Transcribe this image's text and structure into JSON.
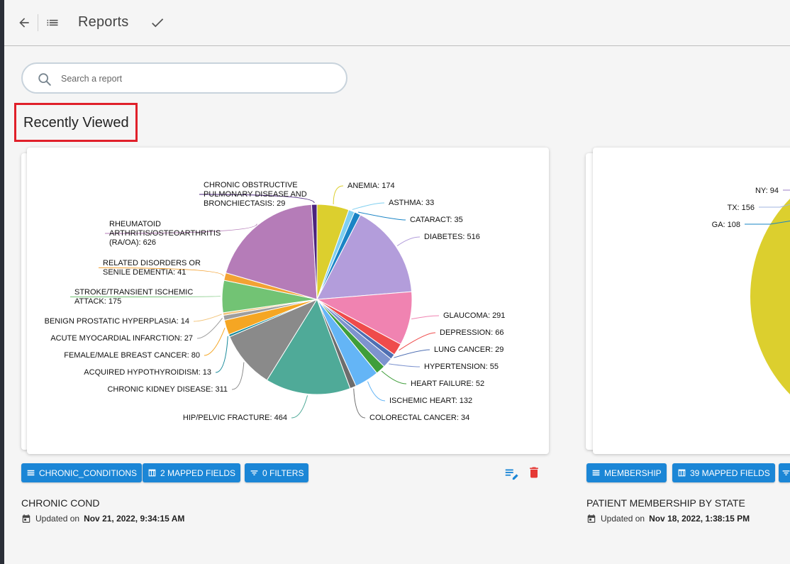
{
  "topbar": {
    "title": "Reports"
  },
  "search": {
    "placeholder": "Search a report"
  },
  "section": {
    "title": "Recently Viewed"
  },
  "reports": [
    {
      "name": "CHRONIC COND",
      "updated_prefix": "Updated on",
      "updated_at": "Nov 21, 2022, 9:34:15 AM",
      "chips": {
        "dataset": "CHRONIC_CONDITIONS",
        "mapped": "2 MAPPED FIELDS",
        "filters": "0 FILTERS"
      }
    },
    {
      "name": "PATIENT MEMBERSHIP BY STATE",
      "updated_prefix": "Updated on",
      "updated_at": "Nov 18, 2022, 1:38:15 PM",
      "chips": {
        "dataset": "MEMBERSHIP",
        "mapped": "39 MAPPED FIELDS"
      }
    }
  ],
  "chart_data": [
    {
      "type": "pie",
      "slices": [
        {
          "label": "ANEMIA",
          "value": 174,
          "color": "#dccf2e"
        },
        {
          "label": "ASTHMA",
          "value": 33,
          "color": "#7fcff0"
        },
        {
          "label": "CATARACT",
          "value": 35,
          "color": "#1a84c5"
        },
        {
          "label": "DIABETES",
          "value": 516,
          "color": "#b39ddb"
        },
        {
          "label": "GLAUCOMA",
          "value": 291,
          "color": "#f083b1"
        },
        {
          "label": "DEPRESSION",
          "value": 66,
          "color": "#ef4b4b"
        },
        {
          "label": "LUNG CANCER",
          "value": 29,
          "color": "#4f6fb3"
        },
        {
          "label": "HYPERTENSION",
          "value": 55,
          "color": "#7d93cf"
        },
        {
          "label": "HEART FAILURE",
          "value": 52,
          "color": "#3f9e3a"
        },
        {
          "label": "ISCHEMIC HEART",
          "value": 132,
          "color": "#64b5f6"
        },
        {
          "label": "COLORECTAL CANCER",
          "value": 34,
          "color": "#6d6d6d"
        },
        {
          "label": "HIP/PELVIC FRACTURE",
          "value": 464,
          "color": "#4faa98"
        },
        {
          "label": "CHRONIC KIDNEY DISEASE",
          "value": 311,
          "color": "#8a8a8a"
        },
        {
          "label": "ACQUIRED HYPOTHYROIDISM",
          "value": 13,
          "color": "#178a9a"
        },
        {
          "label": "FEMALE/MALE BREAST CANCER",
          "value": 80,
          "color": "#f5a623"
        },
        {
          "label": "ACUTE MYOCARDIAL INFARCTION",
          "value": 27,
          "color": "#9e9e9e"
        },
        {
          "label": "BENIGN PROSTATIC HYPERPLASIA",
          "value": 14,
          "color": "#f2c47a"
        },
        {
          "label": "STROKE/TRANSIENT ISCHEMIC ATTACK",
          "value": 175,
          "color": "#72c374"
        },
        {
          "label": "RELATED DISORDERS OR SENILE DEMENTIA",
          "value": 41,
          "color": "#f3a233"
        },
        {
          "label": "RHEUMATOID ARTHRITIS/OSTEOARTHRITIS (RA/OA)",
          "value": 626,
          "color": "#b57cb8"
        },
        {
          "label": "CHRONIC OBSTRUCTIVE PULMONARY DISEASE AND BRONCHIECTASIS",
          "value": 29,
          "color": "#4b237e"
        }
      ]
    },
    {
      "type": "pie",
      "slices": [
        {
          "label": "NY",
          "value": 94,
          "color": "#9b7fc7"
        },
        {
          "label": "TX",
          "value": 156,
          "color": "#a0b4e0"
        },
        {
          "label": "GA",
          "value": 108,
          "color": "#1a84c5"
        }
      ],
      "dominant_slice_color": "#dccf2e"
    }
  ]
}
